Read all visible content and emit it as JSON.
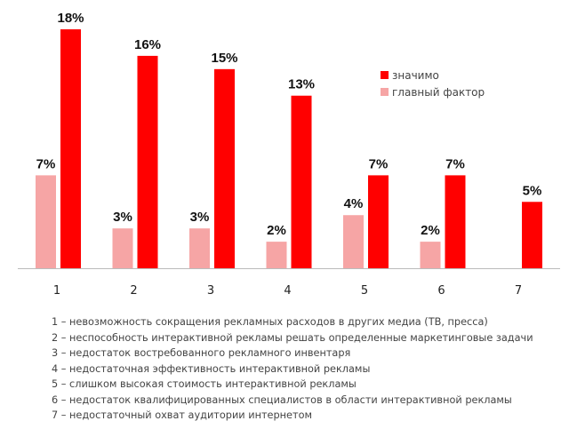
{
  "chart_data": {
    "type": "bar",
    "categories": [
      "1",
      "2",
      "3",
      "4",
      "5",
      "6",
      "7"
    ],
    "series": [
      {
        "name": "главный фактор",
        "color": "#f6a5a5",
        "values": [
          7,
          3,
          3,
          2,
          4,
          2,
          null
        ]
      },
      {
        "name": "значимо",
        "color": "#ff0000",
        "values": [
          18,
          16,
          15,
          13,
          7,
          7,
          5
        ]
      }
    ],
    "value_suffix": "%",
    "ylim": [
      0,
      18
    ],
    "grid": false,
    "legend_placement": "top-right",
    "legend_order": [
      1,
      0
    ]
  },
  "notes": [
    "1 – невозможность сокращения рекламных расходов в других медиа (ТВ, пресса)",
    "2 – неспособность интерактивной рекламы решать определенные маркетинговые задачи",
    "3 – недостаток востребованного рекламного инвентаря",
    "4 – недостаточная эффективность интерактивной рекламы",
    "5 – слишком высокая стоимость интерактивной рекламы",
    "6 – недостаток квалифицированных специалистов в области интерактивной рекламы",
    "7 – недостаточный охват аудитории интернетом"
  ]
}
